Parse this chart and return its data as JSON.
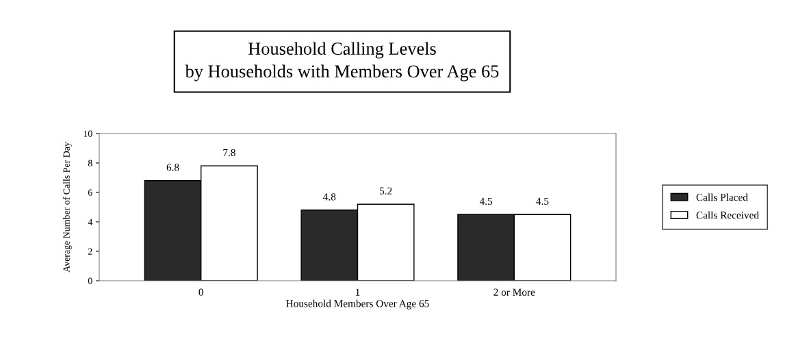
{
  "chart_data": {
    "type": "bar",
    "title": "Household Calling Levels\nby Households with Members Over Age 65",
    "xlabel": "Household Members Over Age 65",
    "ylabel": "Average Number of Calls Per Day",
    "categories": [
      "0",
      "1",
      "2 or More"
    ],
    "series": [
      {
        "name": "Calls Placed",
        "color": "#2a2a2a",
        "values": [
          6.8,
          4.8,
          4.5
        ]
      },
      {
        "name": "Calls Received",
        "color": "#ffffff",
        "values": [
          7.8,
          5.2,
          4.5
        ]
      }
    ],
    "ylim": [
      0,
      10
    ],
    "yticks": [
      0,
      2,
      4,
      6,
      8,
      10
    ],
    "data_labels": true,
    "legend": "right",
    "grid": false
  }
}
